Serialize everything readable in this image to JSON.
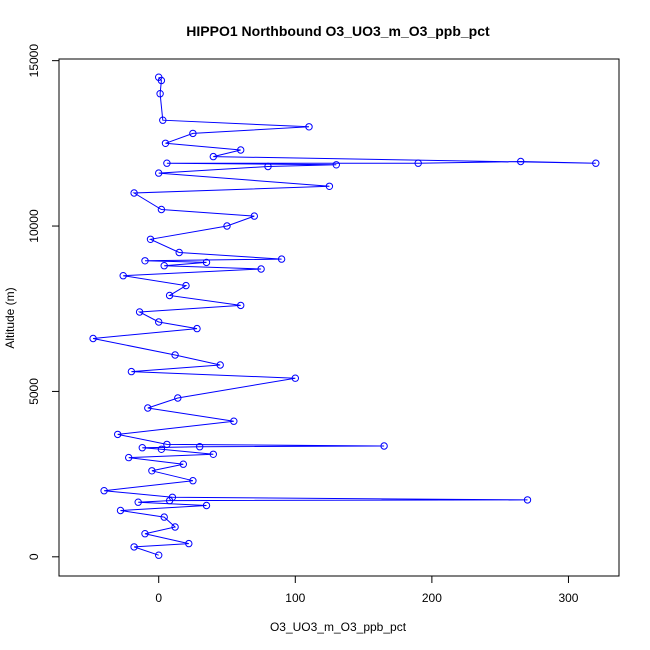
{
  "chart_data": {
    "type": "scatter",
    "title": "HIPPO1 Northbound O3_UO3_m_O3_ppb_pct",
    "xlabel": "O3_UO3_m_O3_ppb_pct",
    "ylabel": "Altitude (m)",
    "xlim": [
      -73,
      337
    ],
    "ylim": [
      -580,
      15050
    ],
    "x_ticks": [
      0,
      100,
      200,
      300
    ],
    "x_tick_labels": [
      "0",
      "100",
      "200",
      "300"
    ],
    "y_ticks": [
      0,
      5000,
      10000,
      15000
    ],
    "y_tick_labels": [
      "0",
      "5000",
      "10000",
      "15000"
    ],
    "grid": false,
    "legend": "none",
    "style": "points connected by lines (open circles)",
    "series_color": "#0000ff",
    "series": [
      {
        "x": [
          0,
          -18,
          22,
          -10,
          12,
          4,
          -28,
          35,
          -15,
          8,
          270,
          10,
          -40,
          25,
          -5,
          18,
          -22,
          40,
          2,
          -12,
          30,
          165,
          6,
          -30,
          55,
          -8,
          14,
          100,
          -20,
          45,
          12,
          -48,
          28,
          0,
          -14,
          60,
          8,
          20,
          -26,
          75,
          4,
          35,
          -10,
          90,
          15,
          -6,
          50,
          70,
          2,
          -18,
          125,
          0,
          80,
          130,
          6,
          190,
          265,
          320,
          40,
          60,
          5,
          25,
          110,
          3,
          1,
          2,
          0
        ],
        "y": [
          50,
          300,
          400,
          700,
          900,
          1200,
          1400,
          1550,
          1650,
          1700,
          1720,
          1800,
          2000,
          2300,
          2600,
          2800,
          3000,
          3100,
          3250,
          3300,
          3330,
          3350,
          3400,
          3700,
          4100,
          4500,
          4800,
          5400,
          5600,
          5800,
          6100,
          6600,
          6900,
          7100,
          7400,
          7600,
          7900,
          8200,
          8500,
          8700,
          8800,
          8900,
          8950,
          9000,
          9200,
          9600,
          10000,
          10300,
          10500,
          11000,
          11200,
          11600,
          11800,
          11850,
          11900,
          11900,
          11950,
          11900,
          12100,
          12300,
          12500,
          12800,
          13000,
          13200,
          14000,
          14400,
          14500
        ]
      }
    ]
  }
}
